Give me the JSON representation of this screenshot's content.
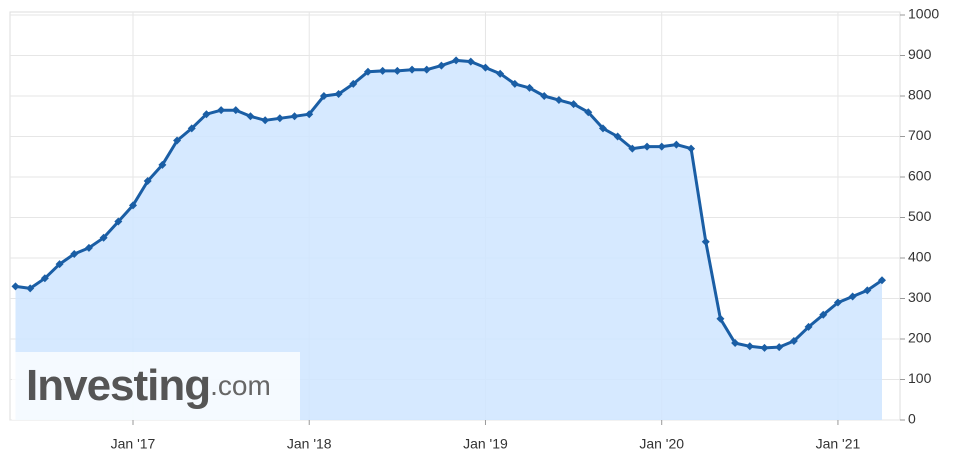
{
  "chart_data": {
    "type": "area",
    "x": [
      "2016-05",
      "2016-06",
      "2016-07",
      "2016-08",
      "2016-09",
      "2016-10",
      "2016-11",
      "2016-12",
      "2017-01",
      "2017-02",
      "2017-03",
      "2017-04",
      "2017-05",
      "2017-06",
      "2017-07",
      "2017-08",
      "2017-09",
      "2017-10",
      "2017-11",
      "2017-12",
      "2018-01",
      "2018-02",
      "2018-03",
      "2018-04",
      "2018-05",
      "2018-06",
      "2018-07",
      "2018-08",
      "2018-09",
      "2018-10",
      "2018-11",
      "2018-12",
      "2019-01",
      "2019-02",
      "2019-03",
      "2019-04",
      "2019-05",
      "2019-06",
      "2019-07",
      "2019-08",
      "2019-09",
      "2019-10",
      "2019-11",
      "2019-12",
      "2020-01",
      "2020-02",
      "2020-03",
      "2020-04",
      "2020-05",
      "2020-06",
      "2020-07",
      "2020-08",
      "2020-09",
      "2020-10",
      "2020-11",
      "2020-12",
      "2021-01",
      "2021-02",
      "2021-03",
      "2021-04"
    ],
    "values": [
      330,
      325,
      350,
      385,
      410,
      425,
      450,
      490,
      530,
      590,
      630,
      690,
      720,
      755,
      765,
      765,
      750,
      740,
      745,
      750,
      755,
      800,
      805,
      830,
      860,
      862,
      862,
      865,
      865,
      875,
      888,
      885,
      870,
      855,
      830,
      820,
      800,
      790,
      780,
      760,
      720,
      700,
      670,
      675,
      675,
      680,
      670,
      440,
      250,
      190,
      182,
      178,
      180,
      195,
      230,
      260,
      290,
      305,
      320,
      345
    ],
    "color": "#1a5ea5",
    "xlim": [
      "2016-05",
      "2021-04"
    ],
    "xticks": [
      {
        "value": "2017-01",
        "label": "Jan '17"
      },
      {
        "value": "2018-01",
        "label": "Jan '18"
      },
      {
        "value": "2019-01",
        "label": "Jan '19"
      },
      {
        "value": "2020-01",
        "label": "Jan '20"
      },
      {
        "value": "2021-01",
        "label": "Jan '21"
      }
    ],
    "ylim": [
      0,
      1000
    ],
    "yticks": [
      0,
      100,
      200,
      300,
      400,
      500,
      600,
      700,
      800,
      900,
      1000
    ],
    "grid": true,
    "watermark": {
      "name": "Investing",
      "suffix": ".com"
    }
  }
}
